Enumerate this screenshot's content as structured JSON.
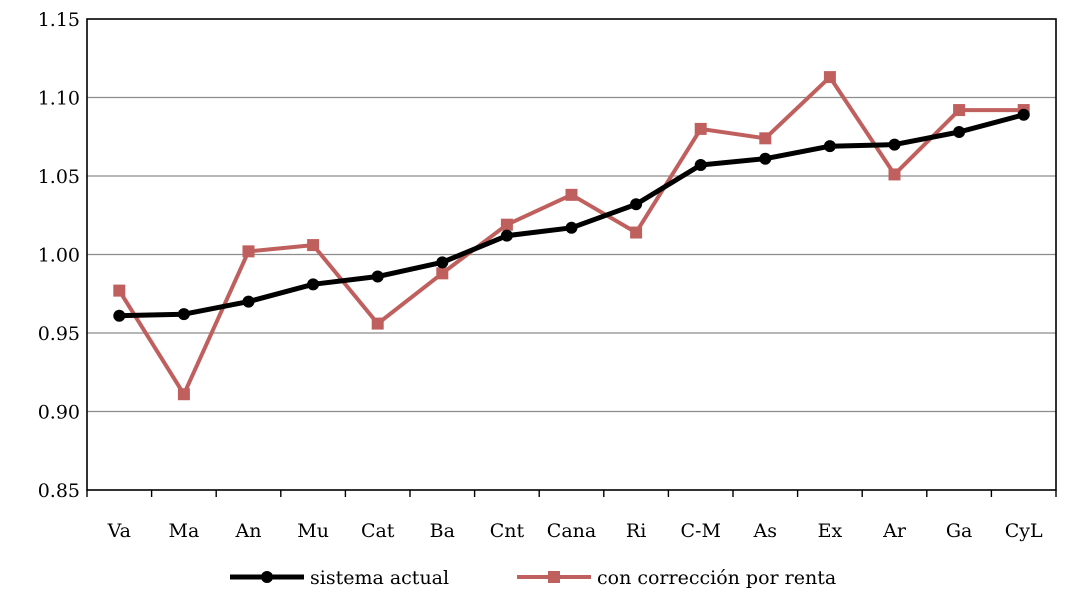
{
  "chart_data": {
    "type": "line",
    "categories": [
      "Va",
      "Ma",
      "An",
      "Mu",
      "Cat",
      "Ba",
      "Cnt",
      "Cana",
      "Ri",
      "C-M",
      "As",
      "Ex",
      "Ar",
      "Ga",
      "CyL"
    ],
    "series": [
      {
        "name": "sistema actual",
        "color": "#000000",
        "marker": "circle",
        "values": [
          0.961,
          0.962,
          0.97,
          0.981,
          0.986,
          0.995,
          1.012,
          1.017,
          1.032,
          1.057,
          1.061,
          1.069,
          1.07,
          1.078,
          1.089
        ]
      },
      {
        "name": "con corrección por renta",
        "color": "#c0605e",
        "marker": "square",
        "values": [
          0.977,
          0.911,
          1.002,
          1.006,
          0.956,
          0.988,
          1.019,
          1.038,
          1.014,
          1.08,
          1.074,
          1.113,
          1.051,
          1.092,
          1.092
        ]
      }
    ],
    "yticks": [
      "0.85",
      "0.90",
      "0.95",
      "1.00",
      "1.05",
      "1.10",
      "1.15"
    ],
    "ylim": [
      0.85,
      1.15
    ],
    "grid": true,
    "legend_position": "bottom",
    "title": "",
    "xlabel": "",
    "ylabel": ""
  }
}
